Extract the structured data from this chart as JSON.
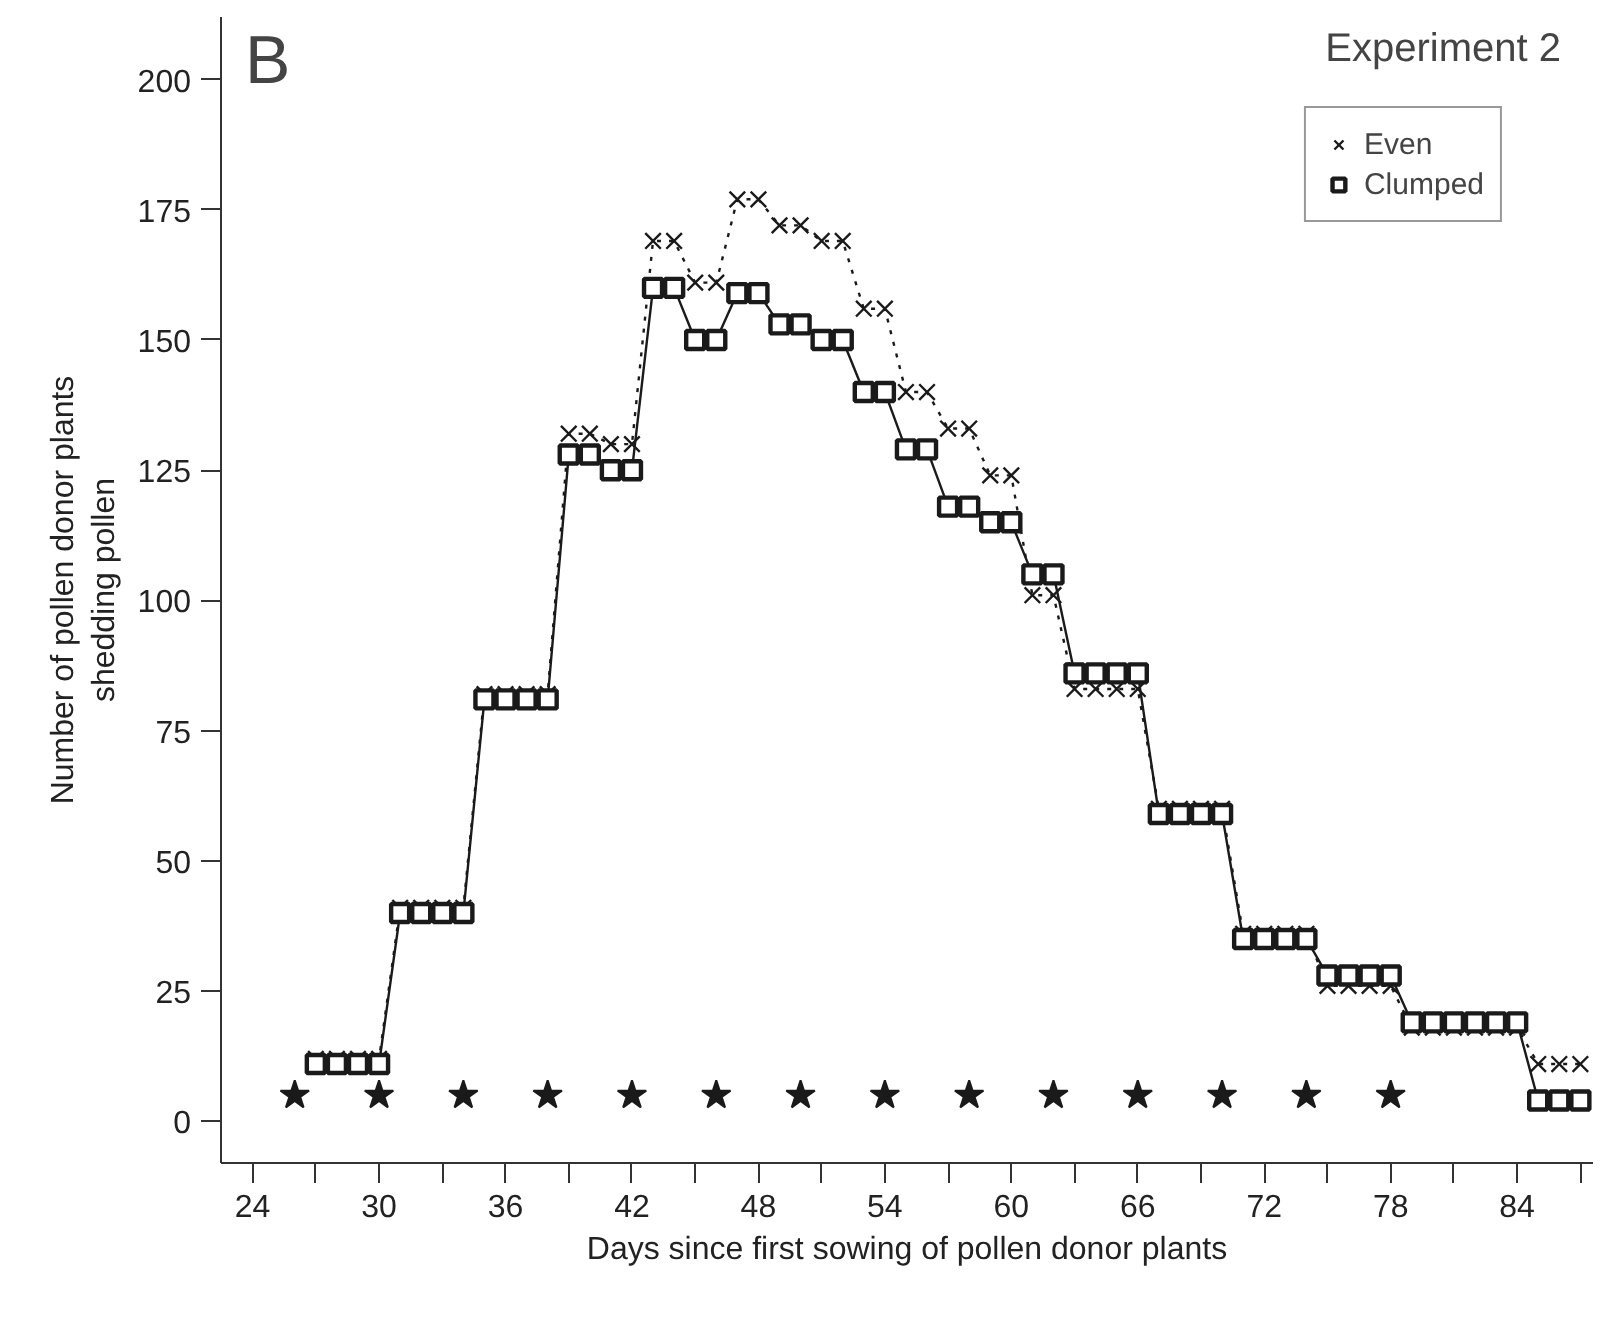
{
  "chart_data": {
    "type": "line",
    "xlabel": "Days since first sowing of pollen donor plants",
    "ylabel": "Number of pollen donor plants\nshedding pollen",
    "annotations": [
      "B",
      "Experiment 2"
    ],
    "xlim": [
      22.5,
      87.6
    ],
    "ylim": [
      -8,
      212
    ],
    "xticks": [
      24,
      {
        "value": 27,
        "label": null
      },
      30,
      {
        "value": 33,
        "label": null
      },
      36,
      {
        "value": 39,
        "label": null
      },
      42,
      {
        "value": 45,
        "label": null
      },
      48,
      {
        "value": 51,
        "label": null
      },
      54,
      {
        "value": 57,
        "label": null
      },
      60,
      {
        "value": 63,
        "label": null
      },
      66,
      {
        "value": 69,
        "label": null
      },
      72,
      {
        "value": 75,
        "label": null
      },
      78,
      {
        "value": 81,
        "label": null
      },
      84,
      {
        "value": 87,
        "label": null
      }
    ],
    "yticks": [
      0,
      25,
      50,
      75,
      100,
      125,
      150,
      175,
      200
    ],
    "grid": false,
    "legend": "top right",
    "series": [
      {
        "name": "Even",
        "color": "#1a1a1a",
        "marker": "cross",
        "line_style": "dotted",
        "x": [
          27,
          28,
          29,
          30,
          31,
          32,
          33,
          34,
          35,
          36,
          37,
          38,
          39,
          40,
          41,
          42,
          43,
          44,
          45,
          46,
          47,
          48,
          49,
          50,
          51,
          52,
          53,
          54,
          55,
          56,
          57,
          58,
          59,
          60,
          61,
          62,
          63,
          64,
          65,
          66,
          67,
          68,
          69,
          70,
          71,
          72,
          73,
          74,
          75,
          76,
          77,
          78,
          79,
          80,
          81,
          82,
          83,
          84,
          85,
          86,
          87
        ],
        "values": [
          12,
          12,
          12,
          12,
          41,
          41,
          41,
          41,
          82,
          82,
          82,
          82,
          132,
          132,
          130,
          130,
          169,
          169,
          161,
          161,
          177,
          177,
          172,
          172,
          169,
          169,
          156,
          156,
          140,
          140,
          133,
          133,
          124,
          124,
          101,
          101,
          83,
          83,
          83,
          83,
          60,
          60,
          60,
          60,
          36,
          36,
          36,
          36,
          26,
          26,
          26,
          26,
          18,
          18,
          18,
          18,
          18,
          18,
          11,
          11,
          11
        ]
      },
      {
        "name": "Clumped",
        "color": "#1a1a1a",
        "marker": "square",
        "line_style": "solid",
        "x": [
          27,
          28,
          29,
          30,
          31,
          32,
          33,
          34,
          35,
          36,
          37,
          38,
          39,
          40,
          41,
          42,
          43,
          44,
          45,
          46,
          47,
          48,
          49,
          50,
          51,
          52,
          53,
          54,
          55,
          56,
          57,
          58,
          59,
          60,
          61,
          62,
          63,
          64,
          65,
          66,
          67,
          68,
          69,
          70,
          71,
          72,
          73,
          74,
          75,
          76,
          77,
          78,
          79,
          80,
          81,
          82,
          83,
          84,
          85,
          86,
          87
        ],
        "values": [
          11,
          11,
          11,
          11,
          40,
          40,
          40,
          40,
          81,
          81,
          81,
          81,
          128,
          128,
          125,
          125,
          160,
          160,
          150,
          150,
          159,
          159,
          153,
          153,
          150,
          150,
          140,
          140,
          129,
          129,
          118,
          118,
          115,
          115,
          105,
          105,
          86,
          86,
          86,
          86,
          59,
          59,
          59,
          59,
          35,
          35,
          35,
          35,
          28,
          28,
          28,
          28,
          19,
          19,
          19,
          19,
          19,
          19,
          4,
          4,
          4
        ]
      },
      {
        "type": "scatter",
        "color": "#1a1a1a",
        "marker": "star",
        "x": [
          26,
          30,
          34,
          38,
          42,
          46,
          50,
          54,
          58,
          62,
          66,
          70,
          74,
          78
        ],
        "values": [
          5,
          5,
          5,
          5,
          5,
          5,
          5,
          5,
          5,
          5,
          5,
          5,
          5,
          5
        ]
      }
    ]
  }
}
